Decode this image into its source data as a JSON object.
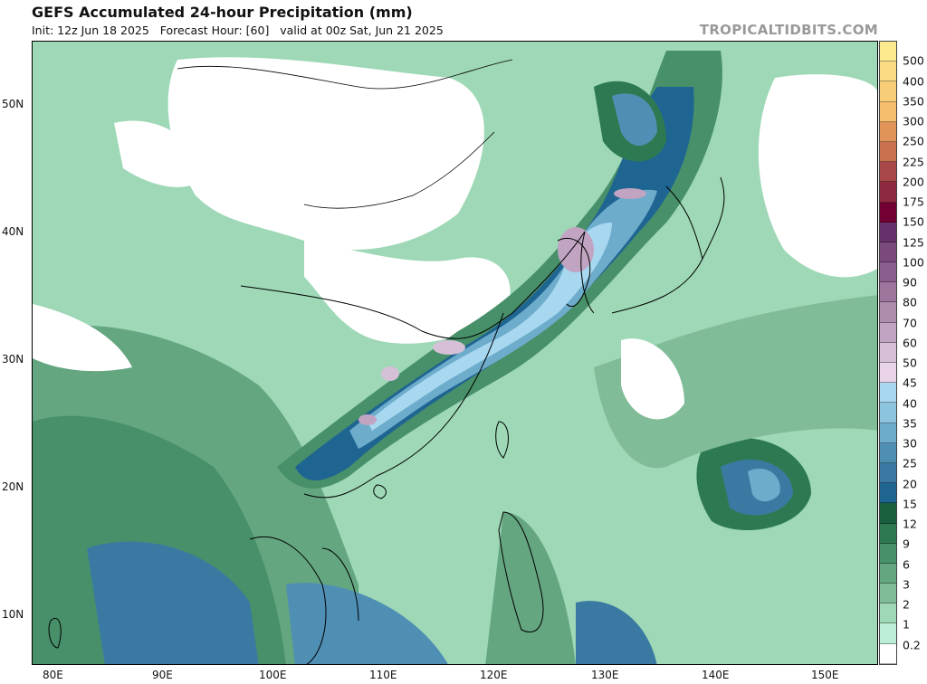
{
  "header": {
    "title": "GEFS Accumulated 24-hour Precipitation (mm)",
    "subtitle": "Init: 12z Jun 18 2025   Forecast Hour: [60]   valid at 00z Sat, Jun 21 2025",
    "brand": "TROPICALTIDBITS.COM"
  },
  "map": {
    "lat_labels": [
      "50N",
      "40N",
      "30N",
      "20N",
      "10N"
    ],
    "lon_labels": [
      "80E",
      "90E",
      "100E",
      "110E",
      "120E",
      "130E",
      "140E",
      "150E"
    ]
  },
  "colorbar": {
    "labels": [
      "500",
      "400",
      "350",
      "300",
      "250",
      "225",
      "200",
      "175",
      "150",
      "125",
      "100",
      "90",
      "80",
      "70",
      "60",
      "50",
      "45",
      "40",
      "35",
      "30",
      "25",
      "20",
      "15",
      "12",
      "9",
      "6",
      "3",
      "2",
      "1",
      "0.2"
    ],
    "colors": [
      "#fbeb8e",
      "#fbdc84",
      "#f8cd78",
      "#f6bd6c",
      "#e0945a",
      "#c97050",
      "#a9484a",
      "#8e2a40",
      "#720032",
      "#66306a",
      "#7a4a7c",
      "#8a5e8e",
      "#9c769c",
      "#ad8cac",
      "#c0a4c2",
      "#d6c0d8",
      "#ead4ea",
      "#a8d8f0",
      "#8cc4e0",
      "#6eaccc",
      "#4f8fb4",
      "#3a7aa2",
      "#1f6592",
      "#1a5e3e",
      "#2d7a52",
      "#48906a",
      "#64a680",
      "#80bc98",
      "#9ed8b6",
      "#baeed6",
      "#ffffff"
    ]
  }
}
